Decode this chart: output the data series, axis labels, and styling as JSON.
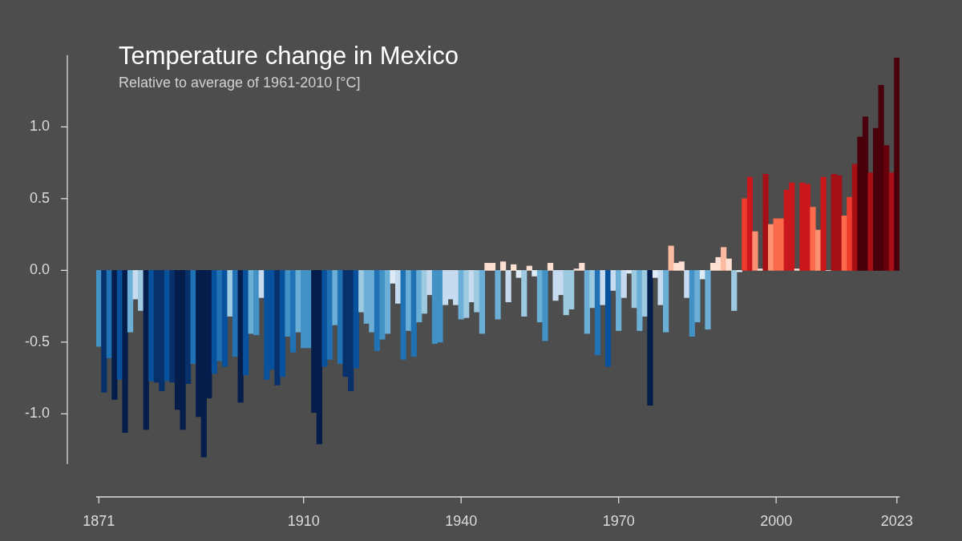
{
  "chart_data": {
    "type": "bar",
    "title": "Temperature change in Mexico",
    "subtitle": "Relative to average of 1961-2010  [°C]",
    "x": [
      1871,
      1872,
      1873,
      1874,
      1875,
      1876,
      1877,
      1878,
      1879,
      1880,
      1881,
      1882,
      1883,
      1884,
      1885,
      1886,
      1887,
      1888,
      1889,
      1890,
      1891,
      1892,
      1893,
      1894,
      1895,
      1896,
      1897,
      1898,
      1899,
      1900,
      1901,
      1902,
      1903,
      1904,
      1905,
      1906,
      1907,
      1908,
      1909,
      1910,
      1911,
      1912,
      1913,
      1914,
      1915,
      1916,
      1917,
      1918,
      1919,
      1920,
      1921,
      1922,
      1923,
      1924,
      1925,
      1926,
      1927,
      1928,
      1929,
      1930,
      1931,
      1932,
      1933,
      1934,
      1935,
      1936,
      1937,
      1938,
      1939,
      1940,
      1941,
      1942,
      1943,
      1944,
      1945,
      1946,
      1947,
      1948,
      1949,
      1950,
      1951,
      1952,
      1953,
      1954,
      1955,
      1956,
      1957,
      1958,
      1959,
      1960,
      1961,
      1962,
      1963,
      1964,
      1965,
      1966,
      1967,
      1968,
      1969,
      1970,
      1971,
      1972,
      1973,
      1974,
      1975,
      1976,
      1977,
      1978,
      1979,
      1980,
      1981,
      1982,
      1983,
      1984,
      1985,
      1986,
      1987,
      1988,
      1989,
      1990,
      1991,
      1992,
      1993,
      1994,
      1995,
      1996,
      1997,
      1998,
      1999,
      2000,
      2001,
      2002,
      2003,
      2004,
      2005,
      2006,
      2007,
      2008,
      2009,
      2010,
      2011,
      2012,
      2013,
      2014,
      2015,
      2016,
      2017,
      2018,
      2019,
      2020,
      2021,
      2022,
      2023
    ],
    "values": [
      -0.53,
      -0.85,
      -0.61,
      -0.9,
      -0.76,
      -1.13,
      -0.43,
      -0.2,
      -0.28,
      -1.11,
      -0.77,
      -0.78,
      -0.84,
      -0.77,
      -0.78,
      -0.97,
      -1.11,
      -0.79,
      -0.65,
      -1.02,
      -1.3,
      -0.89,
      -0.72,
      -0.63,
      -0.67,
      -0.32,
      -0.6,
      -0.92,
      -0.73,
      -0.44,
      -0.45,
      -0.19,
      -0.76,
      -0.69,
      -0.8,
      -0.74,
      -0.46,
      -0.57,
      -0.43,
      -0.54,
      -0.54,
      -0.99,
      -1.21,
      -0.67,
      -0.62,
      -0.38,
      -0.65,
      -0.74,
      -0.84,
      -0.68,
      -0.29,
      -0.37,
      -0.43,
      -0.56,
      -0.48,
      -0.44,
      -0.09,
      -0.23,
      -0.62,
      -0.42,
      -0.6,
      -0.36,
      -0.3,
      -0.17,
      -0.51,
      -0.5,
      -0.24,
      -0.2,
      -0.24,
      -0.34,
      -0.33,
      -0.22,
      -0.29,
      -0.44,
      0.05,
      0.05,
      -0.34,
      0.06,
      -0.22,
      0.04,
      -0.05,
      -0.32,
      0.03,
      -0.04,
      -0.36,
      -0.49,
      0.05,
      -0.21,
      -0.17,
      -0.31,
      -0.27,
      0.01,
      0.05,
      -0.44,
      -0.26,
      -0.59,
      -0.24,
      -0.67,
      -0.14,
      -0.42,
      -0.19,
      -0.02,
      -0.26,
      -0.42,
      -0.32,
      -0.94,
      -0.05,
      -0.24,
      -0.43,
      0.17,
      0.05,
      0.06,
      -0.19,
      -0.46,
      -0.36,
      -0.06,
      -0.41,
      0.05,
      0.09,
      0.16,
      0.08,
      -0.28,
      -0.01,
      0.5,
      0.65,
      0.27,
      0.01,
      0.67,
      0.32,
      0.36,
      0.36,
      0.56,
      0.61,
      0.01,
      0.61,
      0.6,
      0.44,
      0.28,
      0.65,
      0.0,
      0.67,
      0.66,
      0.38,
      0.51,
      0.74,
      0.93,
      1.07,
      0.68,
      0.99,
      1.29,
      0.87,
      0.68,
      1.48
    ],
    "colors": [
      "#4292c6",
      "#08306b",
      "#2171b5",
      "#041d4a",
      "#08519c",
      "#041d4a",
      "#6baed6",
      "#c6dbef",
      "#9ecae1",
      "#041d4a",
      "#08519c",
      "#08306b",
      "#08306b",
      "#08519c",
      "#08306b",
      "#041d4a",
      "#041d4a",
      "#08306b",
      "#2171b5",
      "#041d4a",
      "#041d4a",
      "#041d4a",
      "#08519c",
      "#2171b5",
      "#08519c",
      "#9ecae1",
      "#2171b5",
      "#041d4a",
      "#08519c",
      "#6baed6",
      "#4292c6",
      "#c6dbef",
      "#08519c",
      "#08519c",
      "#08306b",
      "#08519c",
      "#4292c6",
      "#2171b5",
      "#6baed6",
      "#4292c6",
      "#4292c6",
      "#041d4a",
      "#041d4a",
      "#08519c",
      "#2171b5",
      "#6baed6",
      "#2171b5",
      "#08306b",
      "#08306b",
      "#08519c",
      "#9ecae1",
      "#6baed6",
      "#6baed6",
      "#2171b5",
      "#4292c6",
      "#6baed6",
      "#deebf7",
      "#c6dbef",
      "#2171b5",
      "#6baed6",
      "#2171b5",
      "#6baed6",
      "#9ecae1",
      "#c6dbef",
      "#4292c6",
      "#4292c6",
      "#c6dbef",
      "#c6dbef",
      "#c6dbef",
      "#6baed6",
      "#9ecae1",
      "#c6dbef",
      "#9ecae1",
      "#6baed6",
      "#fee0d2",
      "#fee0d2",
      "#6baed6",
      "#fee0d2",
      "#c6dbef",
      "#fee0d2",
      "#deebf7",
      "#9ecae1",
      "#fee0d2",
      "#deebf7",
      "#6baed6",
      "#4292c6",
      "#fee0d2",
      "#c6dbef",
      "#c6dbef",
      "#9ecae1",
      "#9ecae1",
      "#fee0d2",
      "#fee0d2",
      "#6baed6",
      "#9ecae1",
      "#2171b5",
      "#c6dbef",
      "#08519c",
      "#c6dbef",
      "#6baed6",
      "#c6dbef",
      "#deebf7",
      "#9ecae1",
      "#6baed6",
      "#9ecae1",
      "#041d4a",
      "#deebf7",
      "#c6dbef",
      "#6baed6",
      "#fcbba1",
      "#fee0d2",
      "#fee0d2",
      "#c6dbef",
      "#4292c6",
      "#6baed6",
      "#deebf7",
      "#6baed6",
      "#fee0d2",
      "#fee0d2",
      "#fcbba1",
      "#fee0d2",
      "#9ecae1",
      "#deebf7",
      "#ef3b2c",
      "#cb181d",
      "#fc9272",
      "#fee0d2",
      "#a50f15",
      "#fc9272",
      "#fb6a4a",
      "#fb6a4a",
      "#cb181d",
      "#cb181d",
      "#fee0d2",
      "#cb181d",
      "#cb181d",
      "#fb6a4a",
      "#fc9272",
      "#cb181d",
      "#fee0d2",
      "#a50f15",
      "#a50f15",
      "#fb6a4a",
      "#ef3b2c",
      "#a50f15",
      "#4a000b",
      "#4a000b",
      "#a50f15",
      "#4a000b",
      "#4a000b",
      "#67000d",
      "#a50f15",
      "#4a000b"
    ],
    "xlim": [
      1870.5,
      2023.5
    ],
    "xticks": [
      1871,
      1910,
      1940,
      1970,
      2000,
      2023
    ],
    "ylim": [
      -1.35,
      1.5
    ],
    "yticks": [
      {
        "value": -1,
        "label": "-1.0"
      },
      {
        "value": -0.5,
        "label": "-0.5"
      },
      {
        "value": 0,
        "label": "0.0"
      },
      {
        "value": 0.5,
        "label": "0.5"
      },
      {
        "value": 1,
        "label": "1.0"
      }
    ]
  }
}
